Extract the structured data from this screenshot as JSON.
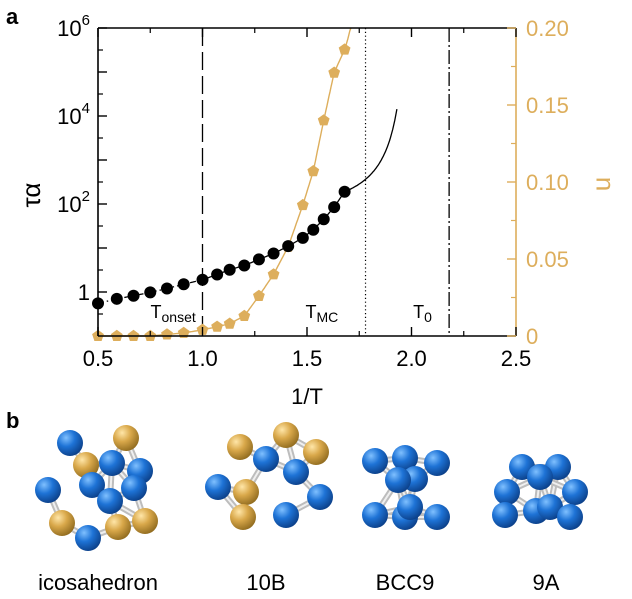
{
  "panel_a_label": "a",
  "panel_b_label": "b",
  "colors": {
    "tau_series": "#000000",
    "u_series": "#DDAE5C",
    "u_axis": "#DDAE5C",
    "atom_blue": "#1E73D6",
    "atom_gold": "#D9A84A",
    "bond": "#BDBDBD"
  },
  "chart_data": {
    "type": "scatter",
    "xlabel": "1/T",
    "ylabel_left": "τα",
    "ylabel_right": "u",
    "xlim": [
      0.5,
      2.5
    ],
    "x_ticks": [
      "0.5",
      "1.0",
      "1.5",
      "2.0",
      "2.5"
    ],
    "y_left_scale": "log",
    "y_left_lim": [
      0.1,
      1000000
    ],
    "y_left_ticks": [
      {
        "value": 1,
        "base": "1",
        "exp": ""
      },
      {
        "value": 100,
        "base": "10",
        "exp": "2"
      },
      {
        "value": 10000,
        "base": "10",
        "exp": "4"
      },
      {
        "value": 1000000,
        "base": "10",
        "exp": "6"
      }
    ],
    "y_right_lim": [
      0,
      0.2
    ],
    "y_right_ticks": [
      "0",
      "0.05",
      "0.10",
      "0.15",
      "0.20"
    ],
    "grid": false,
    "series": [
      {
        "axis": "left",
        "marker": "circle",
        "x": [
          0.5,
          0.59,
          0.67,
          0.75,
          0.83,
          0.91,
          1.0,
          1.07,
          1.13,
          1.2,
          1.27,
          1.34,
          1.41,
          1.48,
          1.53,
          1.58,
          1.63,
          1.68
        ],
        "y": [
          0.55,
          0.7,
          0.82,
          0.98,
          1.2,
          1.5,
          1.9,
          2.5,
          3.2,
          4.0,
          5.5,
          7.5,
          11,
          17,
          26,
          45,
          85,
          190
        ]
      },
      {
        "axis": "right",
        "marker": "pentagon",
        "x": [
          0.5,
          0.59,
          0.67,
          0.75,
          0.83,
          0.91,
          1.0,
          1.07,
          1.13,
          1.2,
          1.27,
          1.34,
          1.41,
          1.48,
          1.53,
          1.58,
          1.63,
          1.68
        ],
        "y": [
          0.0,
          0.0,
          0.0,
          0.0,
          0.001,
          0.002,
          0.004,
          0.006,
          0.008,
          0.013,
          0.026,
          0.04,
          0.058,
          0.085,
          0.107,
          0.14,
          0.171,
          0.186
        ]
      }
    ],
    "fits": [
      {
        "axis": "left",
        "style": "dash-dot",
        "x_start": 0.5,
        "x_end": 1.0
      },
      {
        "axis": "left",
        "style": "solid",
        "x_start": 1.0,
        "x_end": 1.93
      },
      {
        "axis": "right",
        "style": "solid",
        "x_start": 0.5,
        "x_end": 1.8
      }
    ],
    "vlines": [
      {
        "x": 1.0,
        "style": "long-dash",
        "label_base": "T",
        "label_sub": "onset"
      },
      {
        "x": 1.78,
        "style": "dotted",
        "label_base": "T",
        "label_sub": "MC"
      },
      {
        "x": 2.18,
        "style": "dash-dot",
        "label_base": "T",
        "label_sub": "0"
      }
    ]
  },
  "clusters": [
    {
      "label": "icosahedron",
      "icon": "icosahedron-cluster-icon"
    },
    {
      "label": "10B",
      "icon": "10b-cluster-icon"
    },
    {
      "label": "BCC9",
      "icon": "bcc9-cluster-icon"
    },
    {
      "label": "9A",
      "icon": "9a-cluster-icon"
    }
  ]
}
